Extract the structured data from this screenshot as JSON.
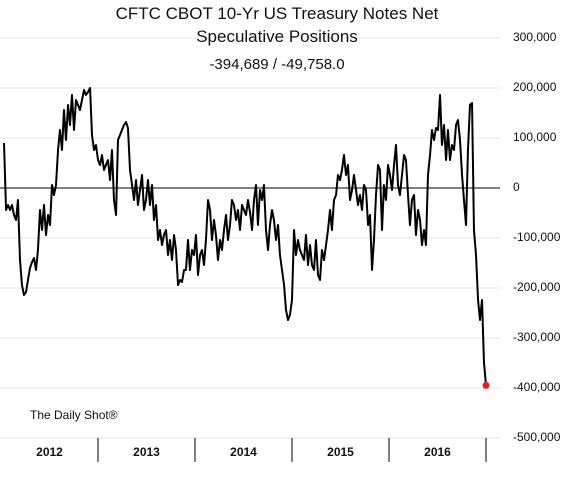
{
  "chart_data": {
    "type": "line",
    "title": "CFTC CBOT 10-Yr US Treasury Notes Net Speculative Positions",
    "subtitle": "-394,689  /  -49,758.0",
    "annotation": "The Daily Shot®",
    "color": "#000000",
    "highlight_last": true,
    "highlight_color": "#e0201b",
    "zero_line": true,
    "grid": true,
    "xlim": [
      2012,
      2017
    ],
    "xticks": [
      {
        "value": 2012.5,
        "label": "2012"
      },
      {
        "value": 2013.5,
        "label": "2013"
      },
      {
        "value": 2014.5,
        "label": "2014"
      },
      {
        "value": 2015.5,
        "label": "2015"
      },
      {
        "value": 2016.5,
        "label": "2016"
      }
    ],
    "ylim": [
      -500000,
      300000
    ],
    "yticks": [
      {
        "value": -500000,
        "label": "-500,000"
      },
      {
        "value": -400000,
        "label": "-400,000"
      },
      {
        "value": -300000,
        "label": "-300,000"
      },
      {
        "value": -200000,
        "label": "-200,000"
      },
      {
        "value": -100000,
        "label": "-100,000"
      },
      0,
      {
        "value": 100000,
        "label": "100,000"
      },
      {
        "value": 200000,
        "label": "200,000"
      },
      {
        "value": 300000,
        "label": "300,000"
      }
    ],
    "x": [
      2012.031,
      2012.052,
      2012.072,
      2012.093,
      2012.113,
      2012.134,
      2012.155,
      2012.175,
      2012.196,
      2012.216,
      2012.237,
      2012.258,
      2012.278,
      2012.299,
      2012.32,
      2012.34,
      2012.361,
      2012.381,
      2012.402,
      2012.423,
      2012.443,
      2012.464,
      2012.485,
      2012.505,
      2012.526,
      2012.546,
      2012.567,
      2012.588,
      2012.608,
      2012.629,
      2012.649,
      2012.67,
      2012.691,
      2012.711,
      2012.732,
      2012.753,
      2012.773,
      2012.794,
      2012.814,
      2012.835,
      2012.856,
      2012.876,
      2012.897,
      2012.918,
      2012.938,
      2012.959,
      2012.979,
      2013.0,
      2013.021,
      2013.041,
      2013.062,
      2013.082,
      2013.103,
      2013.124,
      2013.144,
      2013.165,
      2013.186,
      2013.206,
      2013.227,
      2013.247,
      2013.268,
      2013.289,
      2013.309,
      2013.33,
      2013.351,
      2013.371,
      2013.392,
      2013.412,
      2013.433,
      2013.454,
      2013.474,
      2013.495,
      2013.515,
      2013.536,
      2013.557,
      2013.577,
      2013.598,
      2013.619,
      2013.639,
      2013.66,
      2013.68,
      2013.701,
      2013.722,
      2013.742,
      2013.763,
      2013.784,
      2013.804,
      2013.825,
      2013.845,
      2013.866,
      2013.887,
      2013.907,
      2013.928,
      2013.948,
      2013.969,
      2013.99,
      2014.01,
      2014.031,
      2014.052,
      2014.072,
      2014.093,
      2014.113,
      2014.134,
      2014.155,
      2014.175,
      2014.196,
      2014.216,
      2014.237,
      2014.258,
      2014.278,
      2014.299,
      2014.32,
      2014.34,
      2014.361,
      2014.381,
      2014.402,
      2014.423,
      2014.443,
      2014.464,
      2014.485,
      2014.505,
      2014.526,
      2014.546,
      2014.567,
      2014.588,
      2014.608,
      2014.629,
      2014.649,
      2014.67,
      2014.691,
      2014.711,
      2014.732,
      2014.753,
      2014.773,
      2014.794,
      2014.814,
      2014.835,
      2014.856,
      2014.876,
      2014.897,
      2014.918,
      2014.938,
      2014.959,
      2014.979,
      2015.0,
      2015.021,
      2015.041,
      2015.062,
      2015.082,
      2015.103,
      2015.124,
      2015.144,
      2015.165,
      2015.186,
      2015.206,
      2015.227,
      2015.247,
      2015.268,
      2015.289,
      2015.309,
      2015.33,
      2015.351,
      2015.371,
      2015.392,
      2015.412,
      2015.433,
      2015.454,
      2015.474,
      2015.495,
      2015.515,
      2015.536,
      2015.557,
      2015.577,
      2015.598,
      2015.619,
      2015.639,
      2015.66,
      2015.68,
      2015.701,
      2015.722,
      2015.742,
      2015.763,
      2015.784,
      2015.804,
      2015.825,
      2015.845,
      2015.866,
      2015.887,
      2015.907,
      2015.928,
      2015.948,
      2015.969,
      2015.99,
      2016.01,
      2016.031,
      2016.052,
      2016.072,
      2016.093,
      2016.113,
      2016.134,
      2016.155,
      2016.175,
      2016.196,
      2016.216,
      2016.237,
      2016.258,
      2016.278,
      2016.299,
      2016.32,
      2016.34,
      2016.361,
      2016.381,
      2016.402,
      2016.423,
      2016.443,
      2016.464,
      2016.485,
      2016.505,
      2016.526,
      2016.546,
      2016.567,
      2016.588,
      2016.608,
      2016.629,
      2016.649,
      2016.67,
      2016.691,
      2016.711,
      2016.732,
      2016.753,
      2016.773,
      2016.794,
      2016.814,
      2016.835,
      2016.856,
      2016.876,
      2016.897,
      2016.918,
      2016.938,
      2016.959,
      2016.979,
      2017.0
    ],
    "values": [
      90000,
      -44000,
      -34000,
      -44000,
      -34000,
      -54000,
      -64000,
      -24000,
      -144000,
      -194000,
      -214000,
      -208000,
      -184000,
      -160000,
      -148000,
      -140000,
      -164000,
      -124000,
      -44000,
      -84000,
      -34000,
      -94000,
      -54000,
      -74000,
      6000,
      -14000,
      6000,
      76000,
      116000,
      76000,
      156000,
      96000,
      166000,
      126000,
      186000,
      116000,
      176000,
      166000,
      156000,
      176000,
      196000,
      186000,
      192000,
      200000,
      106000,
      76000,
      86000,
      56000,
      46000,
      66000,
      36000,
      46000,
      56000,
      16000,
      76000,
      -24000,
      -54000,
      96000,
      106000,
      116000,
      126000,
      132000,
      120000,
      36000,
      6000,
      -24000,
      16000,
      -34000,
      -4000,
      26000,
      -44000,
      -24000,
      16000,
      -34000,
      6000,
      -64000,
      -34000,
      -104000,
      -84000,
      -114000,
      -94000,
      -84000,
      -134000,
      -104000,
      -144000,
      -94000,
      -124000,
      -194000,
      -184000,
      -188000,
      -164000,
      -164000,
      -104000,
      -164000,
      -124000,
      -134000,
      -94000,
      -174000,
      -134000,
      -124000,
      -154000,
      -104000,
      -24000,
      -44000,
      -104000,
      -64000,
      -94000,
      -144000,
      -104000,
      -124000,
      -84000,
      -54000,
      -104000,
      -74000,
      -24000,
      -34000,
      -64000,
      -44000,
      -84000,
      -34000,
      -44000,
      -54000,
      -24000,
      -48000,
      -84000,
      -24000,
      6000,
      -74000,
      -4000,
      -24000,
      6000,
      -84000,
      -124000,
      -74000,
      -44000,
      -64000,
      -104000,
      -74000,
      -134000,
      -164000,
      -194000,
      -244000,
      -264000,
      -254000,
      -224000,
      -84000,
      -134000,
      -104000,
      -124000,
      -134000,
      -144000,
      -94000,
      -154000,
      -114000,
      -154000,
      -164000,
      -104000,
      -174000,
      -184000,
      -124000,
      -144000,
      -114000,
      -84000,
      -44000,
      -84000,
      -24000,
      -14000,
      26000,
      16000,
      36000,
      66000,
      26000,
      46000,
      -24000,
      -4000,
      26000,
      -4000,
      -34000,
      -14000,
      -44000,
      6000,
      -4000,
      -74000,
      -54000,
      -164000,
      -104000,
      -14000,
      46000,
      36000,
      -84000,
      6000,
      -24000,
      46000,
      26000,
      -4000,
      46000,
      86000,
      6000,
      -14000,
      26000,
      66000,
      56000,
      -14000,
      -74000,
      -24000,
      -14000,
      -94000,
      -44000,
      -64000,
      -114000,
      -84000,
      -114000,
      26000,
      66000,
      116000,
      96000,
      120000,
      116000,
      186000,
      86000,
      126000,
      56000,
      116000,
      56000,
      86000,
      76000,
      126000,
      136000,
      96000,
      26000,
      -24000,
      -74000,
      76000,
      166000,
      170000,
      -84000,
      -134000,
      -224000,
      -264000,
      -224000,
      -348000,
      -394689
    ]
  }
}
